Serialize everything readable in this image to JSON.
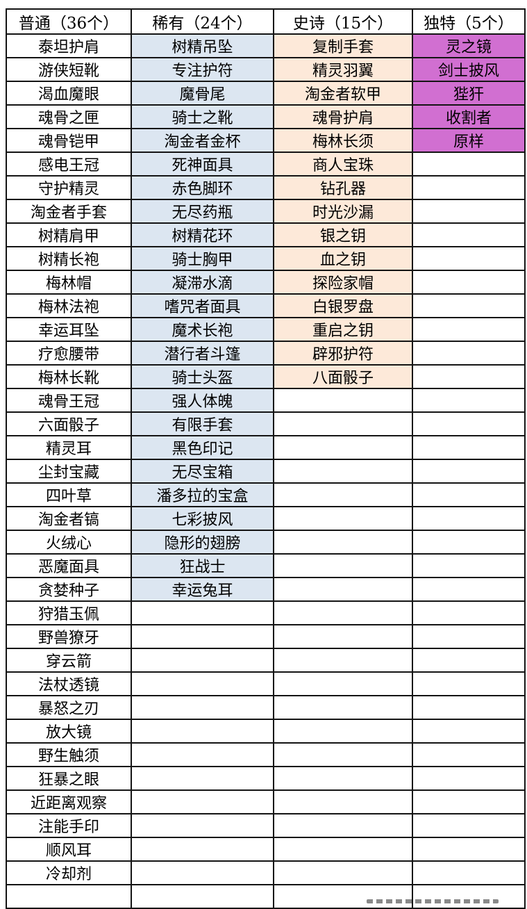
{
  "table": {
    "body_row_count": 37,
    "columns": [
      {
        "id": "common",
        "header": "普通（36个）",
        "count": 36,
        "fill": "#ffffff",
        "items": [
          "泰坦护肩",
          "游侠短靴",
          "渴血魔眼",
          "魂骨之匣",
          "魂骨铠甲",
          "感电王冠",
          "守护精灵",
          "淘金者手套",
          "树精肩甲",
          "树精长袍",
          "梅林帽",
          "梅林法袍",
          "幸运耳坠",
          "疗愈腰带",
          "梅林长靴",
          "魂骨王冠",
          "六面骰子",
          "精灵耳",
          "尘封宝藏",
          "四叶草",
          "淘金者镐",
          "火绒心",
          "恶魔面具",
          "贪婪种子",
          "狩猎玉佩",
          "野兽獠牙",
          "穿云箭",
          "法杖透镜",
          "暴怒之刃",
          "放大镜",
          "野生触须",
          "狂暴之眼",
          "近距离观察",
          "注能手印",
          "顺风耳",
          "冷却剂"
        ]
      },
      {
        "id": "rare",
        "header": "稀有（24个）",
        "count": 24,
        "fill": "#dce6f1",
        "items": [
          "树精吊坠",
          "专注护符",
          "魔骨尾",
          "骑士之靴",
          "淘金者金杯",
          "死神面具",
          "赤色脚环",
          "无尽药瓶",
          "树精花环",
          "骑士胸甲",
          "凝滞水滴",
          "嗜咒者面具",
          "魔术长袍",
          "潜行者斗篷",
          "骑士头盔",
          "强人体魄",
          "有限手套",
          "黑色印记",
          "无尽宝箱",
          "潘多拉的宝盒",
          "七彩披风",
          "隐形的翅膀",
          "狂战士",
          "幸运兔耳"
        ]
      },
      {
        "id": "epic",
        "header": "史诗（15个）",
        "count": 15,
        "fill": "#fde9d9",
        "items": [
          "复制手套",
          "精灵羽翼",
          "淘金者软甲",
          "魂骨护肩",
          "梅林长须",
          "商人宝珠",
          "钻孔器",
          "时光沙漏",
          "银之钥",
          "血之钥",
          "探险家帽",
          "白银罗盘",
          "重启之钥",
          "辟邪护符",
          "八面骰子"
        ]
      },
      {
        "id": "unique",
        "header": "独特（5个）",
        "count": 5,
        "fill": "#d16fd1",
        "items": [
          "灵之镜",
          "剑士披风",
          "狴犴",
          "收割者",
          "原样"
        ]
      }
    ]
  },
  "colors": {
    "border": "#141414",
    "text": "#000000",
    "common_fill": "#ffffff",
    "rare_fill": "#dce6f1",
    "epic_fill": "#fde9d9",
    "unique_fill": "#d16fd1"
  }
}
